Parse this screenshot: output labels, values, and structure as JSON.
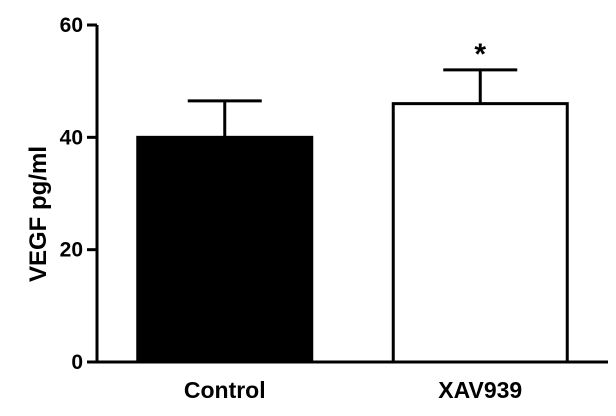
{
  "chart_data": {
    "type": "bar",
    "categories": [
      "Control",
      "XAV939"
    ],
    "values": [
      40,
      46
    ],
    "errors": [
      6.5,
      6
    ],
    "bar_fills": [
      "#000000",
      "#ffffff"
    ],
    "ylabel": "VEGF pg/ml",
    "xlabel": "",
    "ylim": [
      0,
      60
    ],
    "yticks": [
      0,
      20,
      40,
      60
    ],
    "grid": false,
    "annotations": [
      {
        "category": "XAV939",
        "text": "*"
      }
    ]
  }
}
